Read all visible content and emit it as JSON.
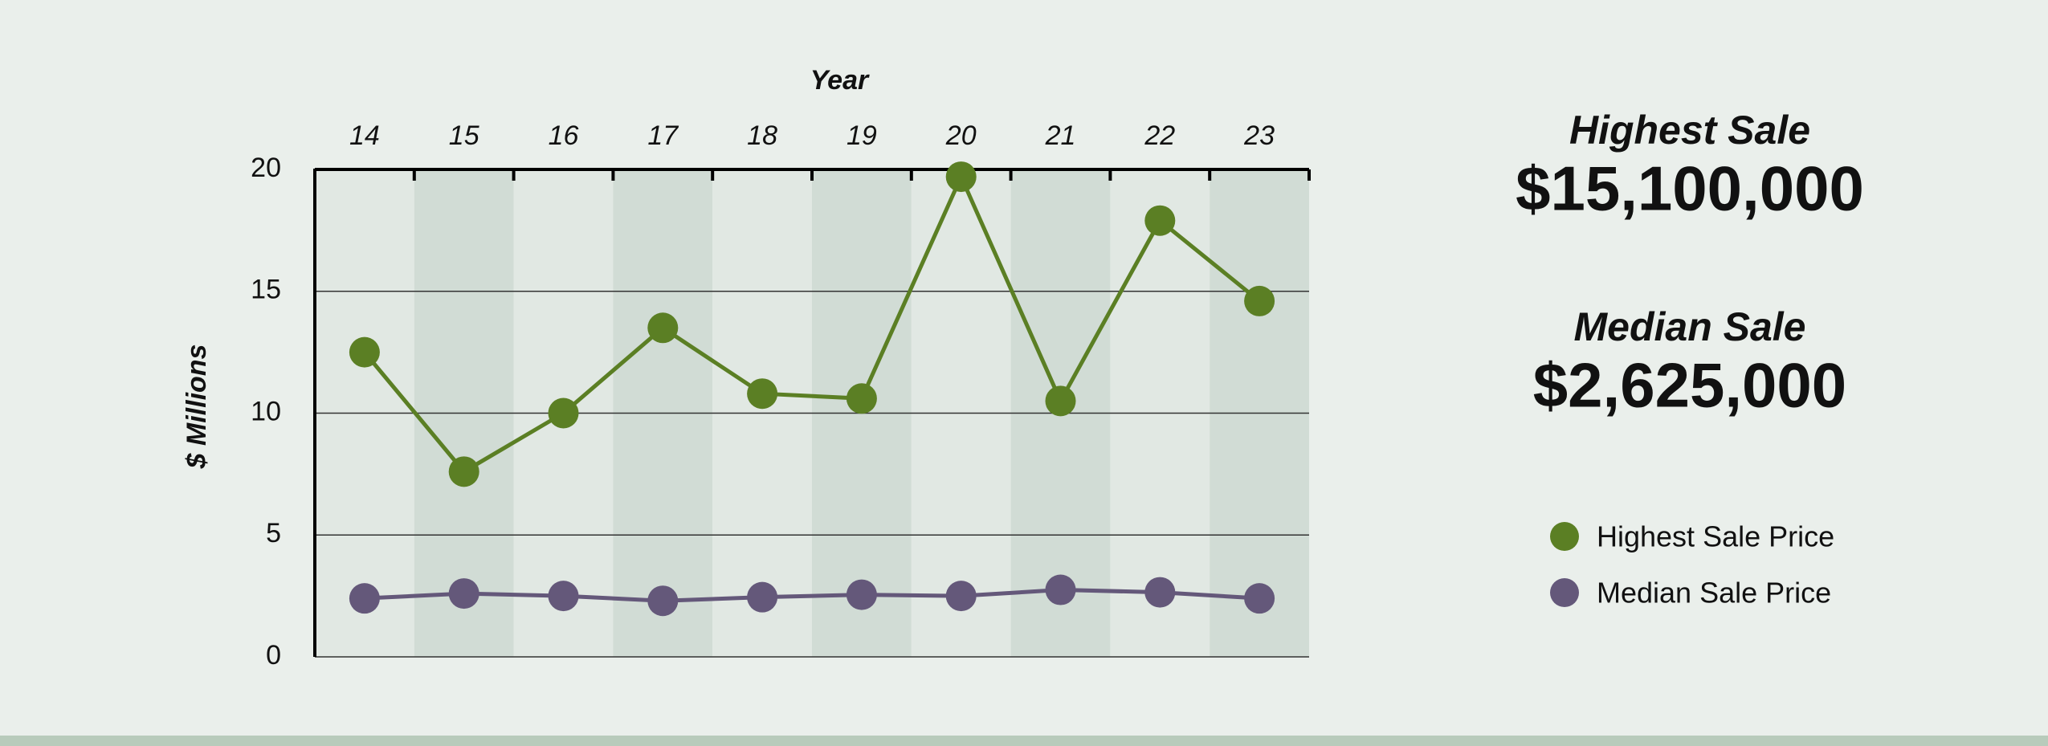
{
  "chart_data": {
    "type": "line",
    "x_label": "Year",
    "y_label": "$ Millions",
    "categories": [
      "14",
      "15",
      "16",
      "17",
      "18",
      "19",
      "20",
      "21",
      "22",
      "23"
    ],
    "series": [
      {
        "name": "Highest Sale Price",
        "color": "#5b7f24",
        "values": [
          12.5,
          7.6,
          10.0,
          13.5,
          10.8,
          10.6,
          19.7,
          10.5,
          17.9,
          14.6
        ]
      },
      {
        "name": "Median Sale Price",
        "color": "#64587a",
        "values": [
          2.4,
          2.6,
          2.5,
          2.3,
          2.45,
          2.55,
          2.5,
          2.75,
          2.65,
          2.4
        ]
      }
    ],
    "ylim": [
      0,
      20
    ],
    "yticks": [
      0,
      5,
      10,
      15,
      20
    ],
    "grid": true
  },
  "summary": [
    {
      "title": "Highest Sale",
      "value": "$15,100,000"
    },
    {
      "title": "Median Sale",
      "value": "$2,625,000"
    }
  ]
}
